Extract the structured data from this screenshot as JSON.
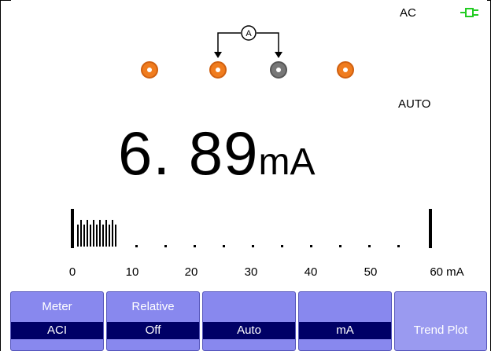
{
  "status": {
    "mode": "AC",
    "range_mode": "AUTO",
    "power_icon": "plug-icon",
    "power_color": "#22cc22"
  },
  "probes": [
    {
      "name": "probe-terminal-1",
      "color": "#f07c1e"
    },
    {
      "name": "probe-terminal-2",
      "color": "#f07c1e"
    },
    {
      "name": "probe-terminal-3",
      "color": "#777777"
    },
    {
      "name": "probe-terminal-4",
      "color": "#f07c1e"
    }
  ],
  "meter_symbol": "A",
  "reading": {
    "value": "6. 89",
    "unit": "mA"
  },
  "bargraph": {
    "scale_labels": [
      "0",
      "10",
      "20",
      "30",
      "40",
      "50",
      "60 mA"
    ],
    "value": 6.89,
    "min": 0,
    "max": 60
  },
  "softkeys": [
    {
      "title": "Meter",
      "value": "ACI"
    },
    {
      "title": "Relative",
      "value": "Off"
    },
    {
      "title": "",
      "value": "Auto"
    },
    {
      "title": "",
      "value": "mA"
    },
    {
      "title": "",
      "value": "Trend Plot"
    }
  ],
  "colors": {
    "softkey_bg": "#8888ee",
    "softkey_value_bg": "#000066",
    "probe_active": "#f07c1e"
  }
}
